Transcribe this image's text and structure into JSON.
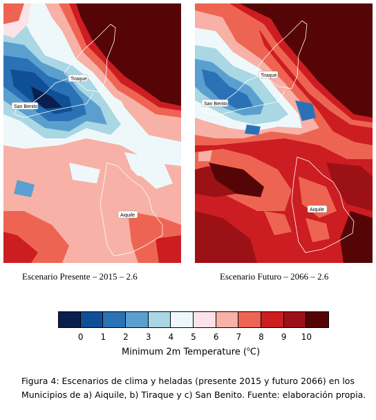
{
  "maps": {
    "left": {
      "caption": "Escenario Presente – 2015 – 2.6",
      "places": [
        "Tiraque",
        "San Benito",
        "Aiquile"
      ]
    },
    "right": {
      "caption": "Escenario Futuro – 2066 – 2.6",
      "places": [
        "Tiraque",
        "San Benito",
        "Aiquile"
      ]
    }
  },
  "colorbar": {
    "title_prefix": "Minimum 2m Temperature (",
    "title_unit_sup": "o",
    "title_suffix": "C)",
    "ticks": [
      "0",
      "1",
      "2",
      "3",
      "4",
      "5",
      "6",
      "7",
      "8",
      "9",
      "10"
    ],
    "colors": [
      "#0a1f4e",
      "#0f4f96",
      "#2a72b5",
      "#5b9fcf",
      "#a9d7e3",
      "#eef8fb",
      "#fbe3e8",
      "#f7b1a6",
      "#ee6452",
      "#cc1d22",
      "#9c1116",
      "#560507"
    ]
  },
  "figure_caption": "Figura 4: Escenarios de clima y heladas (presente 2015 y futuro 2066) en los Municipios de a) Aiquile, b) Tiraque y c) San Benito. Fuente: elaboración propia."
}
